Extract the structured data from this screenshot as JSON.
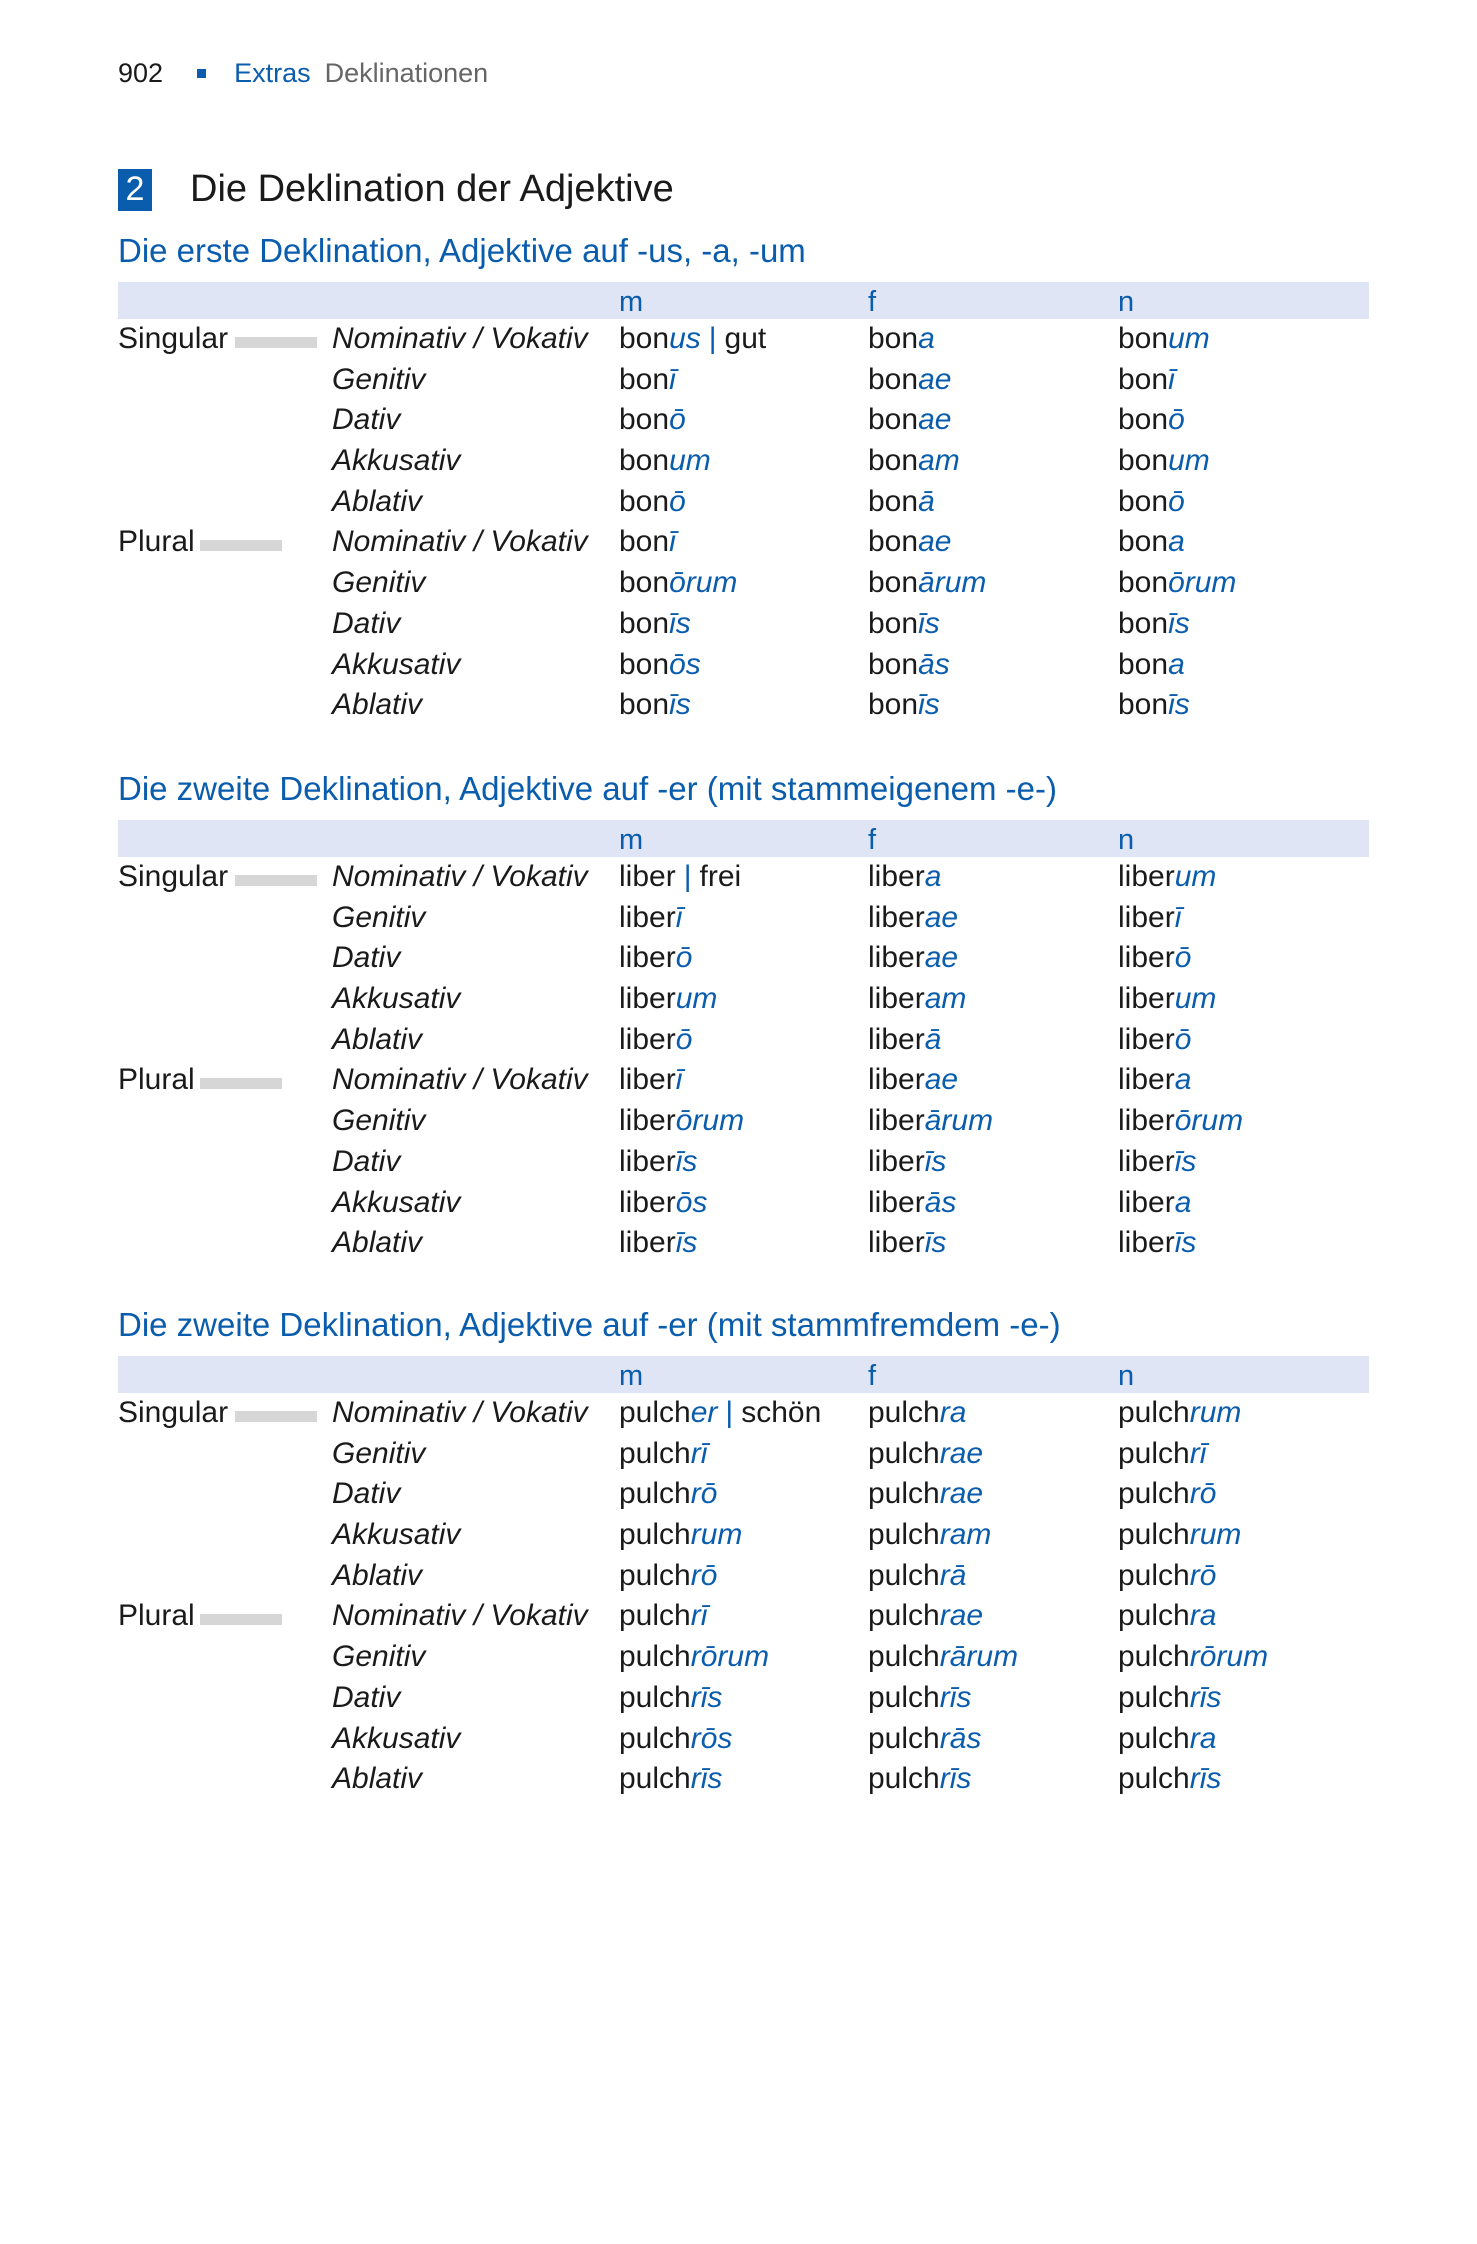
{
  "running_head": {
    "page": "902",
    "extras": "Extras",
    "section": "Deklinationen"
  },
  "chapter": {
    "number": "2",
    "title": "Die Deklination der Adjektive"
  },
  "accent_color": "#0a5cad",
  "columns": [
    "m",
    "f",
    "n"
  ],
  "tables": [
    {
      "title": "Die erste Deklination, Adjektive auf -us, -a, -um",
      "rows": [
        {
          "number": "Singular",
          "case": "Nominativ / Vokativ",
          "m": [
            "bon",
            "us"
          ],
          "gloss": "gut",
          "f": [
            "bon",
            "a"
          ],
          "n": [
            "bon",
            "um"
          ]
        },
        {
          "case": "Genitiv",
          "m": [
            "bon",
            "ī"
          ],
          "f": [
            "bon",
            "ae"
          ],
          "n": [
            "bon",
            "ī"
          ]
        },
        {
          "case": "Dativ",
          "m": [
            "bon",
            "ō"
          ],
          "f": [
            "bon",
            "ae"
          ],
          "n": [
            "bon",
            "ō"
          ]
        },
        {
          "case": "Akkusativ",
          "m": [
            "bon",
            "um"
          ],
          "f": [
            "bon",
            "am"
          ],
          "n": [
            "bon",
            "um"
          ]
        },
        {
          "case": "Ablativ",
          "m": [
            "bon",
            "ō"
          ],
          "f": [
            "bon",
            "ā"
          ],
          "n": [
            "bon",
            "ō"
          ]
        },
        {
          "number": "Plural",
          "case": "Nominativ / Vokativ",
          "m": [
            "bon",
            "ī"
          ],
          "f": [
            "bon",
            "ae"
          ],
          "n": [
            "bon",
            "a"
          ]
        },
        {
          "case": "Genitiv",
          "m": [
            "bon",
            "ōrum"
          ],
          "f": [
            "bon",
            "ārum"
          ],
          "n": [
            "bon",
            "ōrum"
          ]
        },
        {
          "case": "Dativ",
          "m": [
            "bon",
            "īs"
          ],
          "f": [
            "bon",
            "īs"
          ],
          "n": [
            "bon",
            "īs"
          ]
        },
        {
          "case": "Akkusativ",
          "m": [
            "bon",
            "ōs"
          ],
          "f": [
            "bon",
            "ās"
          ],
          "n": [
            "bon",
            "a"
          ]
        },
        {
          "case": "Ablativ",
          "m": [
            "bon",
            "īs"
          ],
          "f": [
            "bon",
            "īs"
          ],
          "n": [
            "bon",
            "īs"
          ]
        }
      ]
    },
    {
      "title": "Die zweite Deklination, Adjektive auf -er (mit stammeigenem -e-)",
      "rows": [
        {
          "number": "Singular",
          "case": "Nominativ / Vokativ",
          "m": [
            "liber",
            ""
          ],
          "gloss": "frei",
          "f": [
            "liber",
            "a"
          ],
          "n": [
            "liber",
            "um"
          ]
        },
        {
          "case": "Genitiv",
          "m": [
            "liber",
            "ī"
          ],
          "f": [
            "liber",
            "ae"
          ],
          "n": [
            "liber",
            "ī"
          ]
        },
        {
          "case": "Dativ",
          "m": [
            "liber",
            "ō"
          ],
          "f": [
            "liber",
            "ae"
          ],
          "n": [
            "liber",
            "ō"
          ]
        },
        {
          "case": "Akkusativ",
          "m": [
            "liber",
            "um"
          ],
          "f": [
            "liber",
            "am"
          ],
          "n": [
            "liber",
            "um"
          ]
        },
        {
          "case": "Ablativ",
          "m": [
            "liber",
            "ō"
          ],
          "f": [
            "liber",
            "ā"
          ],
          "n": [
            "liber",
            "ō"
          ]
        },
        {
          "number": "Plural",
          "case": "Nominativ / Vokativ",
          "m": [
            "liber",
            "ī"
          ],
          "f": [
            "liber",
            "ae"
          ],
          "n": [
            "liber",
            "a"
          ]
        },
        {
          "case": "Genitiv",
          "m": [
            "liber",
            "ōrum"
          ],
          "f": [
            "liber",
            "ārum"
          ],
          "n": [
            "liber",
            "ōrum"
          ]
        },
        {
          "case": "Dativ",
          "m": [
            "liber",
            "īs"
          ],
          "f": [
            "liber",
            "īs"
          ],
          "n": [
            "liber",
            "īs"
          ]
        },
        {
          "case": "Akkusativ",
          "m": [
            "liber",
            "ōs"
          ],
          "f": [
            "liber",
            "ās"
          ],
          "n": [
            "liber",
            "a"
          ]
        },
        {
          "case": "Ablativ",
          "m": [
            "liber",
            "īs"
          ],
          "f": [
            "liber",
            "īs"
          ],
          "n": [
            "liber",
            "īs"
          ]
        }
      ]
    },
    {
      "title": "Die zweite Deklination, Adjektive auf -er (mit stammfremdem -e-)",
      "rows": [
        {
          "number": "Singular",
          "case": "Nominativ / Vokativ",
          "m": [
            "pulch",
            "er"
          ],
          "gloss": "schön",
          "f": [
            "pulch",
            "ra"
          ],
          "n": [
            "pulch",
            "rum"
          ]
        },
        {
          "case": "Genitiv",
          "m": [
            "pulch",
            "rī"
          ],
          "f": [
            "pulch",
            "rae"
          ],
          "n": [
            "pulch",
            "rī"
          ]
        },
        {
          "case": "Dativ",
          "m": [
            "pulch",
            "rō"
          ],
          "f": [
            "pulch",
            "rae"
          ],
          "n": [
            "pulch",
            "rō"
          ]
        },
        {
          "case": "Akkusativ",
          "m": [
            "pulch",
            "rum"
          ],
          "f": [
            "pulch",
            "ram"
          ],
          "n": [
            "pulch",
            "rum"
          ]
        },
        {
          "case": "Ablativ",
          "m": [
            "pulch",
            "rō"
          ],
          "f": [
            "pulch",
            "rā"
          ],
          "n": [
            "pulch",
            "rō"
          ]
        },
        {
          "number": "Plural",
          "case": "Nominativ / Vokativ",
          "m": [
            "pulch",
            "rī"
          ],
          "f": [
            "pulch",
            "rae"
          ],
          "n": [
            "pulch",
            "ra"
          ]
        },
        {
          "case": "Genitiv",
          "m": [
            "pulch",
            "rōrum"
          ],
          "f": [
            "pulch",
            "rārum"
          ],
          "n": [
            "pulch",
            "rōrum"
          ]
        },
        {
          "case": "Dativ",
          "m": [
            "pulch",
            "rīs"
          ],
          "f": [
            "pulch",
            "rīs"
          ],
          "n": [
            "pulch",
            "rīs"
          ]
        },
        {
          "case": "Akkusativ",
          "m": [
            "pulch",
            "rōs"
          ],
          "f": [
            "pulch",
            "rās"
          ],
          "n": [
            "pulch",
            "ra"
          ]
        },
        {
          "case": "Ablativ",
          "m": [
            "pulch",
            "rīs"
          ],
          "f": [
            "pulch",
            "rīs"
          ],
          "n": [
            "pulch",
            "rīs"
          ]
        }
      ]
    }
  ]
}
